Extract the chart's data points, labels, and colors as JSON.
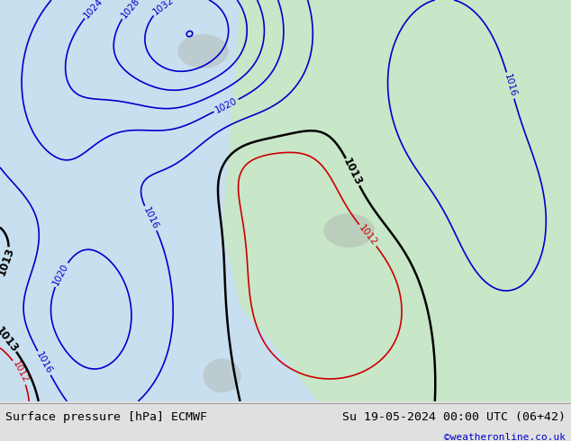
{
  "title_left": "Surface pressure [hPa] ECMWF",
  "title_right": "Su 19-05-2024 00:00 UTC (06+42)",
  "credit": "©weatheronline.co.uk",
  "land_color": "#c8e6c8",
  "sea_color": "#c8dff0",
  "footer_bg": "#e0e0e0",
  "contour_color_low": "#cc0000",
  "contour_color_high": "#0000cc",
  "contour_color_1013": "#000000",
  "label_fontsize": 7.5,
  "footer_fontsize": 9.5
}
